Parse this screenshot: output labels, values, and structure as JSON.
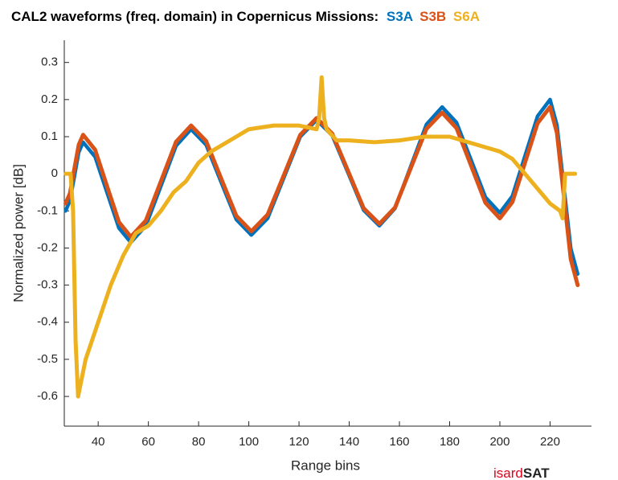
{
  "chart_data": {
    "type": "line",
    "title": "CAL2 waveforms (freq. domain) in Copernicus Missions:",
    "xlabel": "Range bins",
    "ylabel": "Normalized power [dB]",
    "logo": {
      "part1": "isard",
      "part2": "SAT"
    },
    "xlim": [
      26.5,
      236.5
    ],
    "xticks": [
      40,
      60,
      80,
      100,
      120,
      140,
      160,
      180,
      200,
      220
    ],
    "ylim": [
      -0.68,
      0.36
    ],
    "yticks": [
      0.3,
      0.2,
      0.1,
      0,
      -0.1,
      -0.2,
      -0.3,
      -0.4,
      -0.5,
      -0.6
    ],
    "grid": false,
    "series": [
      {
        "name": "S3A",
        "color": "#0072BD",
        "x": [
          27,
          28.75,
          30.5,
          32.25,
          34,
          38.75,
          43.5,
          48.25,
          53,
          59,
          65,
          71,
          77,
          83,
          89,
          95,
          101,
          107.5,
          114,
          120.5,
          127,
          133.25,
          139.5,
          145.75,
          152,
          158.25,
          164.5,
          170.75,
          177,
          182.75,
          188.5,
          194.25,
          200,
          205,
          210,
          215,
          220,
          222.75,
          225.5,
          228.25,
          231
        ],
        "values": [
          -0.1,
          -0.073,
          -0.008,
          0.058,
          0.085,
          0.046,
          -0.05,
          -0.146,
          -0.185,
          -0.14,
          -0.033,
          0.075,
          0.12,
          0.078,
          -0.023,
          -0.123,
          -0.165,
          -0.12,
          -0.01,
          0.1,
          0.145,
          0.103,
          0.003,
          -0.098,
          -0.14,
          -0.093,
          0.02,
          0.133,
          0.18,
          0.138,
          0.038,
          -0.063,
          -0.105,
          -0.06,
          0.048,
          0.155,
          0.2,
          0.131,
          -0.035,
          -0.201,
          -0.27
        ]
      },
      {
        "name": "S3B",
        "color": "#D95319",
        "x": [
          27,
          28.75,
          30.5,
          32.25,
          34,
          38.75,
          43.5,
          48.25,
          53,
          59,
          65,
          71,
          77,
          83,
          89,
          95,
          101,
          107.5,
          114,
          120.5,
          127,
          133.25,
          139.5,
          145.75,
          152,
          158.25,
          164.5,
          170.75,
          177,
          182.75,
          188.5,
          194.25,
          200,
          205,
          210,
          215,
          220,
          222.75,
          225.5,
          228.25,
          231
        ],
        "values": [
          -0.08,
          -0.053,
          0.013,
          0.078,
          0.105,
          0.065,
          -0.033,
          -0.13,
          -0.17,
          -0.126,
          -0.02,
          0.086,
          0.13,
          0.088,
          -0.013,
          -0.113,
          -0.155,
          -0.11,
          -0.003,
          0.105,
          0.15,
          0.108,
          0.008,
          -0.093,
          -0.135,
          -0.091,
          0.015,
          0.121,
          0.165,
          0.123,
          0.023,
          -0.078,
          -0.12,
          -0.076,
          0.03,
          0.136,
          0.18,
          0.11,
          -0.06,
          -0.23,
          -0.3
        ]
      },
      {
        "name": "S6A",
        "color": "#EDB120",
        "x": [
          27,
          29,
          30,
          31,
          32,
          35,
          40,
          45,
          50,
          55,
          60,
          65,
          70,
          75,
          80,
          85,
          90,
          95,
          100,
          110,
          120,
          127,
          128,
          129,
          130,
          131,
          135,
          140,
          150,
          160,
          170,
          180,
          190,
          200,
          205,
          210,
          215,
          220,
          224,
          225,
          226,
          230
        ],
        "values": [
          0,
          0,
          -0.1,
          -0.45,
          -0.6,
          -0.5,
          -0.4,
          -0.3,
          -0.22,
          -0.16,
          -0.14,
          -0.1,
          -0.05,
          -0.02,
          0.03,
          0.06,
          0.08,
          0.1,
          0.12,
          0.13,
          0.13,
          0.12,
          0.15,
          0.26,
          0.15,
          0.12,
          0.09,
          0.09,
          0.085,
          0.09,
          0.1,
          0.1,
          0.08,
          0.06,
          0.04,
          0,
          -0.04,
          -0.08,
          -0.1,
          -0.12,
          0,
          0
        ]
      }
    ]
  }
}
